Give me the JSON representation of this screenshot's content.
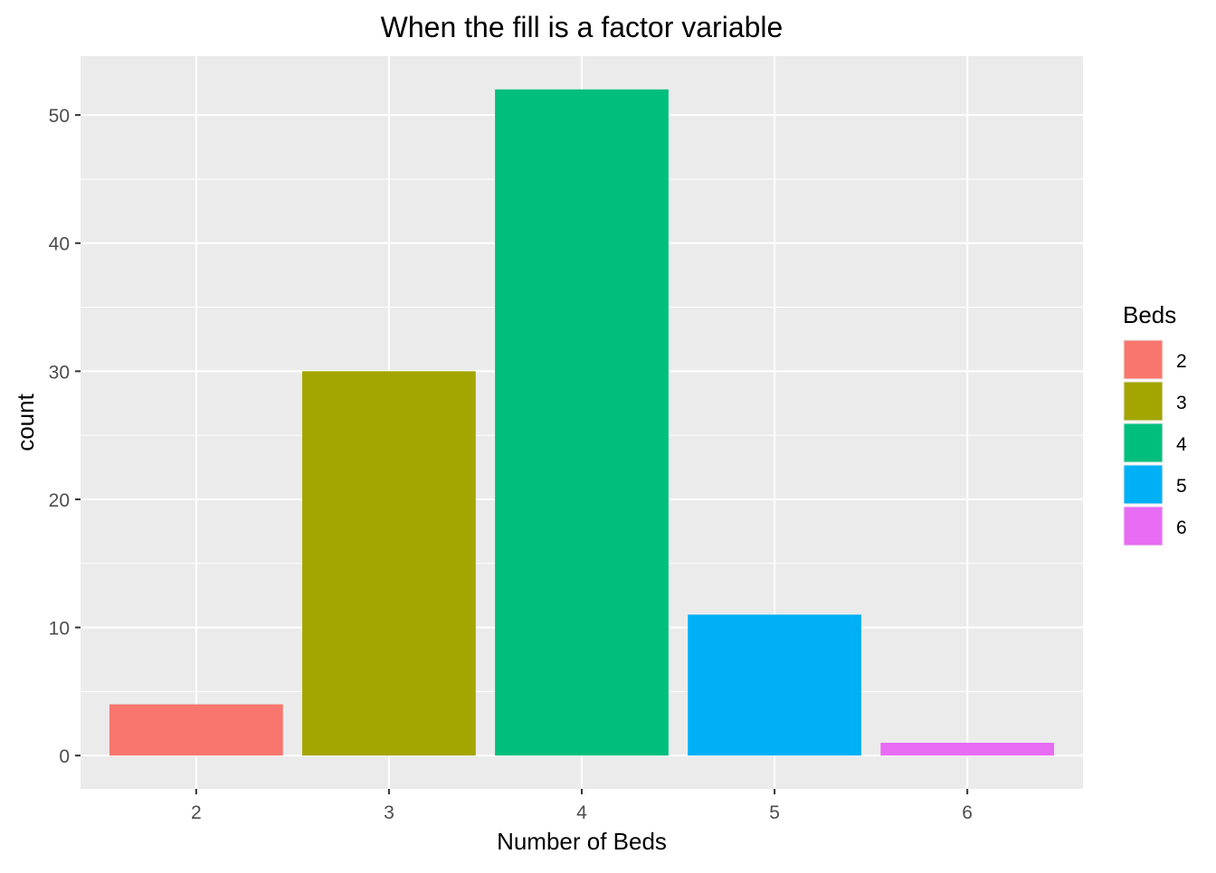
{
  "chart_data": {
    "type": "bar",
    "title": "When the fill is a factor variable",
    "xlabel": "Number of Beds",
    "ylabel": "count",
    "categories": [
      "2",
      "3",
      "4",
      "5",
      "6"
    ],
    "values": [
      4,
      30,
      52,
      11,
      1
    ],
    "colors": [
      "#F8766D",
      "#A3A500",
      "#00BF7D",
      "#00B0F6",
      "#E76BF3"
    ],
    "ylim": [
      -2.6,
      54.6
    ],
    "yticks": [
      0,
      10,
      20,
      30,
      40,
      50
    ],
    "ytick_labels": [
      "0",
      "10",
      "20",
      "30",
      "40",
      "50"
    ],
    "grid": true,
    "panel_background": "#EBEBEB",
    "legend": {
      "title": "Beds",
      "position": "right",
      "entries": [
        "2",
        "3",
        "4",
        "5",
        "6"
      ]
    }
  }
}
